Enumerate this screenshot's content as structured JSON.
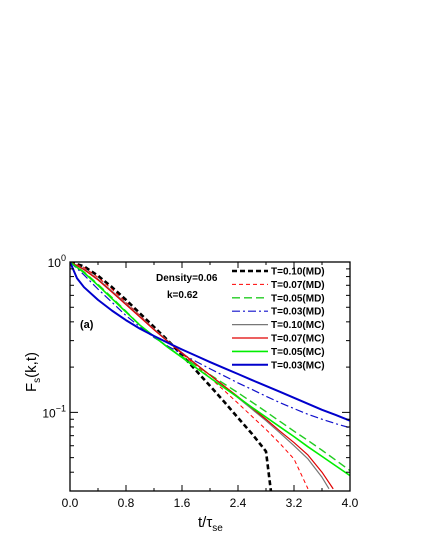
{
  "chart_data": {
    "type": "line",
    "panel_label": "(a)",
    "annotations": [
      "Density=0.06",
      "k=0.62"
    ],
    "xlabel": "t/τ",
    "xlabel_sub": "se",
    "ylabel": "F",
    "ylabel_sub": "s",
    "ylabel_suffix": "(k,t)",
    "xlim": [
      0.0,
      4.0
    ],
    "ylim": [
      0.03,
      1.0
    ],
    "y_scale": "log",
    "x_ticks": [
      "0.0",
      "0.8",
      "1.6",
      "2.4",
      "3.2",
      "4.0"
    ],
    "y_ticks": [
      {
        "value": 1.0,
        "base": "10",
        "exp": "0"
      },
      {
        "value": 0.1,
        "base": "10",
        "exp": "−1"
      }
    ],
    "legend_position": "top-right",
    "series": [
      {
        "name": "T=0.10(MD)",
        "color": "#000000",
        "dash": "5,3",
        "width": 2.6,
        "x": [
          0,
          0.2,
          0.4,
          0.6,
          0.8,
          1.0,
          1.2,
          1.4,
          1.6,
          1.8,
          2.0,
          2.2,
          2.4,
          2.6,
          2.8,
          2.87
        ],
        "y": [
          1.0,
          0.935,
          0.81,
          0.68,
          0.56,
          0.455,
          0.37,
          0.3,
          0.24,
          0.19,
          0.15,
          0.118,
          0.092,
          0.072,
          0.055,
          0.03
        ]
      },
      {
        "name": "T=0.07(MD)",
        "color": "#ff0000",
        "dash": "4,3",
        "width": 1.0,
        "x": [
          0,
          0.2,
          0.4,
          0.6,
          0.8,
          1.0,
          1.2,
          1.4,
          1.6,
          1.8,
          2.0,
          2.2,
          2.4,
          2.6,
          2.8,
          3.0,
          3.2,
          3.4
        ],
        "y": [
          1.0,
          0.92,
          0.79,
          0.66,
          0.54,
          0.44,
          0.36,
          0.295,
          0.245,
          0.205,
          0.17,
          0.14,
          0.115,
          0.094,
          0.077,
          0.062,
          0.049,
          0.031
        ]
      },
      {
        "name": "T=0.05(MD)",
        "color": "#22cc22",
        "dash": "8,4",
        "width": 1.4,
        "x": [
          0,
          0.2,
          0.4,
          0.6,
          0.8,
          1.0,
          1.2,
          1.4,
          1.6,
          1.8,
          2.0,
          2.2,
          2.4,
          2.6,
          2.8,
          3.0,
          3.2,
          3.4,
          3.6,
          3.8,
          4.0
        ],
        "y": [
          1.0,
          0.86,
          0.71,
          0.58,
          0.47,
          0.38,
          0.32,
          0.27,
          0.235,
          0.205,
          0.178,
          0.155,
          0.135,
          0.117,
          0.101,
          0.087,
          0.075,
          0.065,
          0.056,
          0.048,
          0.041
        ]
      },
      {
        "name": "T=0.03(MD)",
        "color": "#1010cc",
        "dash": "8,3,2,3",
        "width": 1.2,
        "x": [
          0,
          0.2,
          0.4,
          0.6,
          0.8,
          1.0,
          1.2,
          1.4,
          1.6,
          1.8,
          2.0,
          2.2,
          2.4,
          2.6,
          2.8,
          3.0,
          3.2,
          3.4,
          3.6,
          3.8,
          4.0
        ],
        "y": [
          1.0,
          0.82,
          0.66,
          0.54,
          0.44,
          0.37,
          0.315,
          0.275,
          0.245,
          0.218,
          0.195,
          0.175,
          0.157,
          0.142,
          0.128,
          0.116,
          0.106,
          0.097,
          0.09,
          0.084,
          0.079
        ]
      },
      {
        "name": "T=0.10(MC)",
        "color": "#777777",
        "dash": "",
        "width": 1.2,
        "x": [
          0,
          0.2,
          0.4,
          0.6,
          0.8,
          1.0,
          1.2,
          1.4,
          1.6,
          1.8,
          2.0,
          2.2,
          2.4,
          2.6,
          2.8,
          3.0,
          3.2,
          3.4,
          3.6,
          3.7
        ],
        "y": [
          1.0,
          0.9,
          0.77,
          0.64,
          0.53,
          0.435,
          0.358,
          0.298,
          0.25,
          0.21,
          0.177,
          0.149,
          0.125,
          0.105,
          0.088,
          0.073,
          0.06,
          0.049,
          0.037,
          0.031
        ]
      },
      {
        "name": "T=0.07(MC)",
        "color": "#e00000",
        "dash": "",
        "width": 1.2,
        "x": [
          0,
          0.2,
          0.4,
          0.6,
          0.8,
          1.0,
          1.2,
          1.4,
          1.6,
          1.8,
          2.0,
          2.2,
          2.4,
          2.6,
          2.8,
          3.0,
          3.2,
          3.4,
          3.6,
          3.76
        ],
        "y": [
          1.0,
          0.89,
          0.76,
          0.63,
          0.52,
          0.43,
          0.354,
          0.295,
          0.248,
          0.209,
          0.177,
          0.15,
          0.127,
          0.107,
          0.09,
          0.075,
          0.063,
          0.052,
          0.04,
          0.031
        ]
      },
      {
        "name": "T=0.05(MC)",
        "color": "#00ee00",
        "dash": "",
        "width": 1.6,
        "x": [
          0,
          0.2,
          0.4,
          0.6,
          0.8,
          1.0,
          1.2,
          1.4,
          1.6,
          1.8,
          2.0,
          2.2,
          2.4,
          2.6,
          2.8,
          3.0,
          3.2,
          3.4,
          3.6,
          3.8,
          4.0
        ],
        "y": [
          1.0,
          0.85,
          0.7,
          0.57,
          0.465,
          0.38,
          0.32,
          0.27,
          0.232,
          0.198,
          0.17,
          0.146,
          0.126,
          0.108,
          0.093,
          0.08,
          0.069,
          0.059,
          0.051,
          0.044,
          0.038
        ]
      },
      {
        "name": "T=0.03(MC)",
        "color": "#0000cc",
        "dash": "",
        "width": 2.0,
        "x": [
          0,
          0.1,
          0.2,
          0.4,
          0.6,
          0.8,
          1.0,
          1.2,
          1.4,
          1.6,
          1.8,
          2.0,
          2.2,
          2.4,
          2.6,
          2.8,
          3.0,
          3.2,
          3.4,
          3.6,
          3.8,
          4.0
        ],
        "y": [
          1.0,
          0.78,
          0.68,
          0.56,
          0.475,
          0.41,
          0.36,
          0.322,
          0.29,
          0.262,
          0.238,
          0.216,
          0.197,
          0.18,
          0.164,
          0.15,
          0.137,
          0.125,
          0.114,
          0.104,
          0.096,
          0.088
        ]
      }
    ]
  }
}
